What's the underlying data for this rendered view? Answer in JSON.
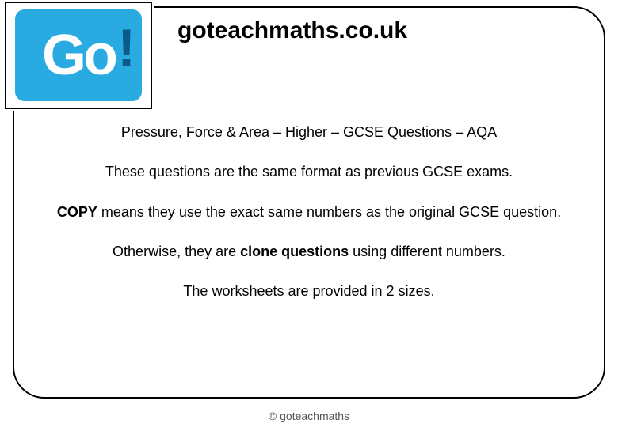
{
  "logo": {
    "text": "Go",
    "excl": "!",
    "bg_color": "#29abe2",
    "text_color": "#ffffff",
    "excl_color": "#0a5a8a"
  },
  "site_title": "goteachmaths.co.uk",
  "doc": {
    "title": "Pressure, Force & Area – Higher – GCSE Questions – AQA",
    "p1": "These questions are the same format as previous GCSE exams.",
    "p2_bold": "COPY",
    "p2_rest": " means they use the exact same numbers as the original GCSE question.",
    "p3_pre": "Otherwise, they are ",
    "p3_bold": "clone questions",
    "p3_post": " using different numbers.",
    "p4": "The worksheets are provided in 2 sizes."
  },
  "footer": "© goteachmaths",
  "colors": {
    "border": "#000000",
    "background": "#ffffff",
    "text": "#000000",
    "footer_text": "#555555"
  },
  "typography": {
    "site_title_fontsize": 30,
    "body_fontsize": 18,
    "footer_fontsize": 14
  }
}
